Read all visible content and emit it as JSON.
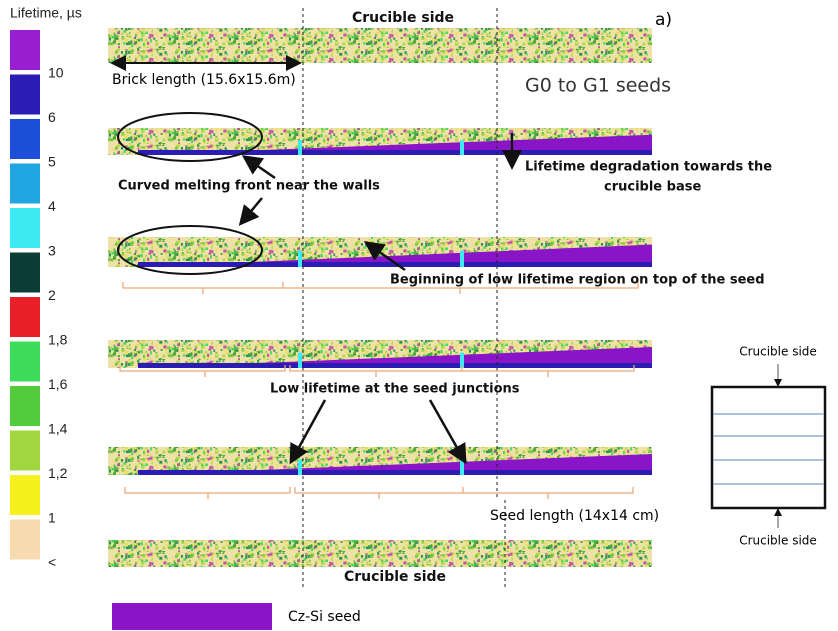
{
  "colorbar": {
    "title": "Lifetime, µs",
    "levels": [
      {
        "label": "10",
        "color": "#9a1ed2"
      },
      {
        "label": "6",
        "color": "#2b1db4"
      },
      {
        "label": "5",
        "color": "#1e4fd8"
      },
      {
        "label": "4",
        "color": "#22a6e2"
      },
      {
        "label": "3",
        "color": "#3de9f2"
      },
      {
        "label": "2",
        "color": "#0b3d36"
      },
      {
        "label": "1,8",
        "color": "#e8202a"
      },
      {
        "label": "1,6",
        "color": "#3ddc5a"
      },
      {
        "label": "1,4",
        "color": "#52cc3c"
      },
      {
        "label": "1,2",
        "color": "#a2d63e"
      },
      {
        "label": "1",
        "color": "#f6f01e"
      },
      {
        "label": "<",
        "color": "#f8dcb0"
      }
    ]
  },
  "panel_label": "a)",
  "top_label": "Crucible side",
  "bottom_label": "Crucible side",
  "brick_length": "Brick length (15.6x15.6m)",
  "seeds_title": "G0 to G1 seeds",
  "annotations": {
    "curved_front": "Curved melting front near the walls",
    "degradation": [
      "Lifetime degradation towards the",
      "crucible base"
    ],
    "low_region": "Beginning of low lifetime region on top of the seed",
    "junctions": "Low lifetime at the seed junctions",
    "seed_length": "Seed length (14x14 cm)"
  },
  "schematic": {
    "top_label": "Crucible side",
    "bottom_label": "Crucible side"
  },
  "legend": {
    "label": "Cz-Si seed",
    "color": "#8a14c8"
  }
}
